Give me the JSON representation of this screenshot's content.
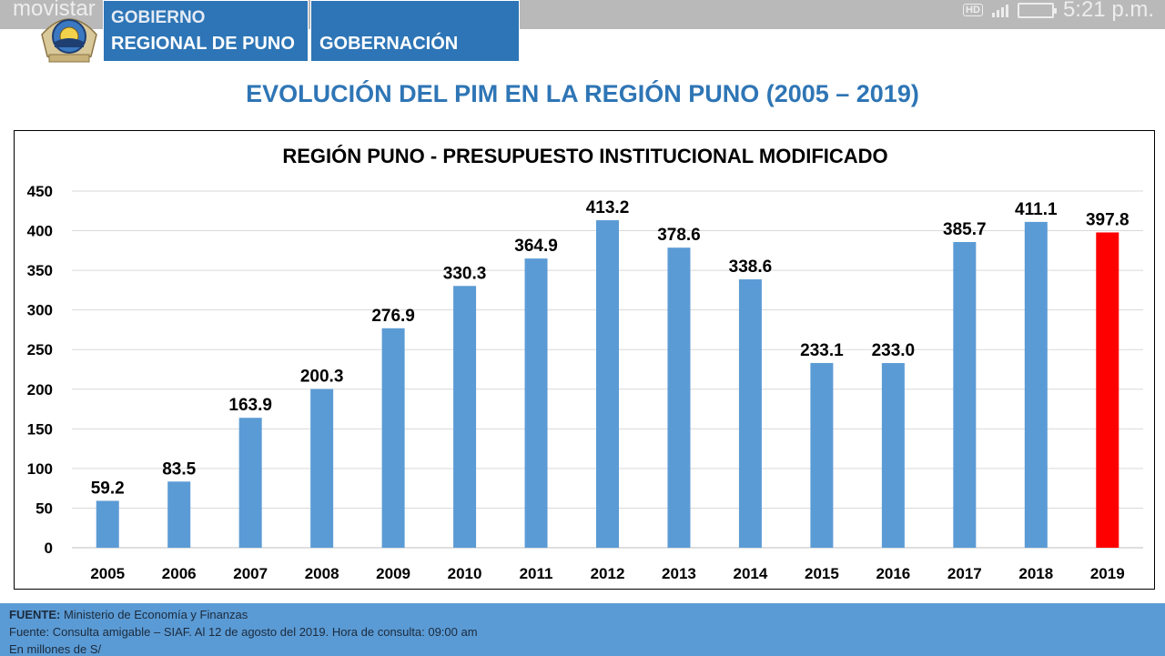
{
  "status_bar": {
    "carrier": "movistar",
    "hd_badge": "HD",
    "time": "5:21 p.m."
  },
  "header": {
    "org_line1": "GOBIERNO",
    "org_line2": "REGIONAL DE PUNO",
    "section": "GOBERNACIÓN"
  },
  "slide_title": "EVOLUCIÓN DEL PIM EN LA REGIÓN PUNO (2005 – 2019)",
  "colors": {
    "header_blue": "#2d75b6",
    "title_blue": "#2e75b5",
    "bar_blue": "#5b9bd5",
    "bar_highlight": "#ff0000",
    "footer_blue": "#5b9bd5"
  },
  "chart_data": {
    "type": "bar",
    "title": "REGIÓN PUNO - PRESUPUESTO INSTITUCIONAL MODIFICADO",
    "xlabel": "",
    "ylabel": "",
    "categories": [
      "2005",
      "2006",
      "2007",
      "2008",
      "2009",
      "2010",
      "2011",
      "2012",
      "2013",
      "2014",
      "2015",
      "2016",
      "2017",
      "2018",
      "2019"
    ],
    "values": [
      59.2,
      83.5,
      163.9,
      200.3,
      276.9,
      330.3,
      364.9,
      413.2,
      378.6,
      338.6,
      233.1,
      233.0,
      385.7,
      411.1,
      397.8
    ],
    "value_labels": [
      "59.2",
      "83.5",
      "163.9",
      "200.3",
      "276.9",
      "330.3",
      "364.9",
      "413.2",
      "378.6",
      "338.6",
      "233.1",
      "233.0",
      "385.7",
      "411.1",
      "397.8"
    ],
    "highlight_category": "2019",
    "ylim": [
      0,
      450
    ],
    "yticks": [
      0,
      50,
      100,
      150,
      200,
      250,
      300,
      350,
      400,
      450
    ],
    "grid": true,
    "legend": "none"
  },
  "footer": {
    "source_label": "FUENTE:",
    "source_text": " Ministerio de Economía y Finanzas",
    "line2": "Fuente: Consulta amigable – SIAF. Al 12 de agosto del 2019. Hora de consulta: 09:00 am",
    "line3": "En millones de S/"
  }
}
